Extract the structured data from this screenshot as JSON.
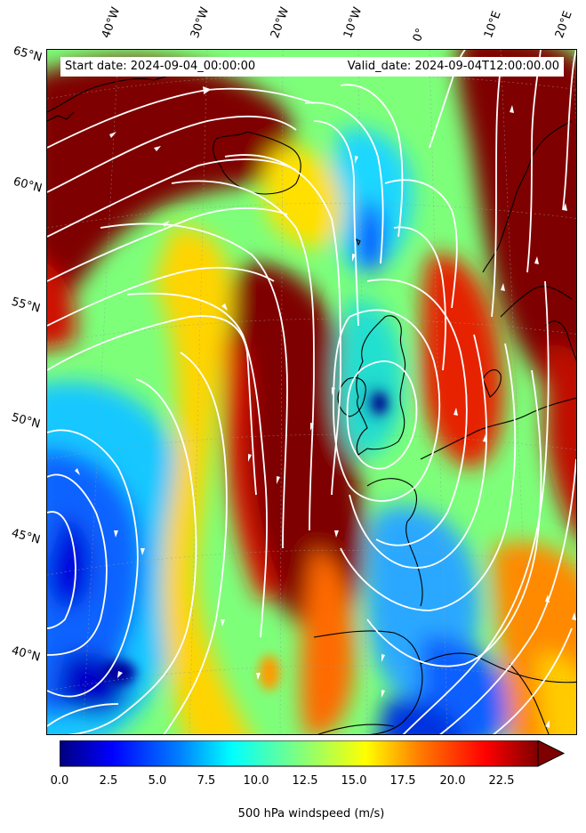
{
  "header": {
    "start_date": "Start date: 2024-09-04_00:00:00",
    "valid_date": "Valid_date: 2024-09-04T12:00:00.00"
  },
  "axes": {
    "longitude_labels": [
      "40°W",
      "30°W",
      "20°W",
      "10°W",
      "0°",
      "10°E",
      "20°E"
    ],
    "latitude_labels": [
      "65°N",
      "60°N",
      "55°N",
      "50°N",
      "45°N",
      "40°N"
    ]
  },
  "colorbar": {
    "label": "500 hPa windspeed (m/s)",
    "ticks": [
      "0.0",
      "2.5",
      "5.0",
      "7.5",
      "10.0",
      "12.5",
      "15.0",
      "17.5",
      "20.0",
      "22.5"
    ],
    "min": 0,
    "max": 25,
    "extend": "max",
    "colormap": "jet",
    "colors": [
      "#00007f",
      "#0000ff",
      "#007fff",
      "#00ffff",
      "#7fff7f",
      "#ffff00",
      "#ff7f00",
      "#ff0000",
      "#7f0000"
    ]
  },
  "map": {
    "field": "500 hPa windspeed",
    "streamline_color": "#ffffff",
    "coastline_color": "#000000"
  }
}
